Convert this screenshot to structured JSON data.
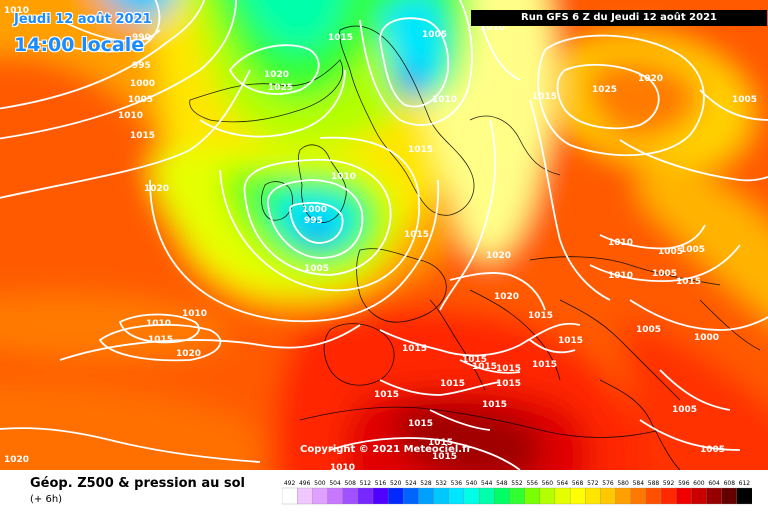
{
  "header": {
    "date_label": "Jeudi 12 août 2021",
    "time_label": "14:00 locale",
    "run_label": "Run GFS 6 Z du Jeudi 12 août 2021"
  },
  "copyright": "Copyright © 2021 Meteociel.fr",
  "legend": {
    "title": "Géop. Z500 & pression au sol",
    "subtitle": "(+ 6h)",
    "scale_values": [
      "492",
      "496",
      "500",
      "504",
      "508",
      "512",
      "516",
      "520",
      "524",
      "528",
      "532",
      "536",
      "540",
      "544",
      "548",
      "552",
      "556",
      "560",
      "564",
      "568",
      "572",
      "576",
      "580",
      "584",
      "588",
      "592",
      "596",
      "600",
      "604",
      "608",
      "612"
    ],
    "scale_colors": [
      "#ffffff",
      "#f0c8ff",
      "#e0a0ff",
      "#c878ff",
      "#a050ff",
      "#7828ff",
      "#5000ff",
      "#0028ff",
      "#0064ff",
      "#00a0ff",
      "#00c8ff",
      "#00e6ff",
      "#00ffe6",
      "#00ffaa",
      "#00ff64",
      "#32ff32",
      "#78ff00",
      "#b4ff00",
      "#e6ff00",
      "#ffff00",
      "#ffe600",
      "#ffc800",
      "#ffa000",
      "#ff7800",
      "#ff5000",
      "#ff2800",
      "#f00000",
      "#c80000",
      "#960000",
      "#640000",
      "#000000"
    ]
  },
  "isobars": [
    {
      "text": "1010",
      "pos": "nw-corner"
    },
    {
      "text": "990",
      "pos": "iceland-low"
    },
    {
      "text": "995",
      "pos": "iceland-low"
    },
    {
      "text": "1000",
      "pos": "iceland-low"
    },
    {
      "text": "1005",
      "pos": "iceland-low"
    },
    {
      "text": "1010",
      "pos": "iceland-low"
    },
    {
      "text": "1015",
      "pos": "iceland-low"
    },
    {
      "text": "1020",
      "pos": "atlantic"
    },
    {
      "text": "1020",
      "pos": "greenland-sea"
    },
    {
      "text": "1025",
      "pos": "greenland-sea"
    },
    {
      "text": "1015",
      "pos": "north-sea"
    },
    {
      "text": "1005",
      "pos": "norwegian-sea"
    },
    {
      "text": "1010",
      "pos": "norwegian-sea"
    },
    {
      "text": "1000",
      "pos": "uk-low"
    },
    {
      "text": "995",
      "pos": "uk-low"
    },
    {
      "text": "1005",
      "pos": "uk-low"
    },
    {
      "text": "1010",
      "pos": "uk-low"
    },
    {
      "text": "1015",
      "pos": "france"
    },
    {
      "text": "1015",
      "pos": "scandinavia"
    },
    {
      "text": "1010",
      "pos": "barents"
    },
    {
      "text": "1015",
      "pos": "russia"
    },
    {
      "text": "1025",
      "pos": "russia"
    },
    {
      "text": "1020",
      "pos": "russia"
    },
    {
      "text": "1005",
      "pos": "ne-corner"
    },
    {
      "text": "1020",
      "pos": "central-europe"
    },
    {
      "text": "1020",
      "pos": "alps"
    },
    {
      "text": "1010",
      "pos": "black-sea"
    },
    {
      "text": "1005",
      "pos": "black-sea"
    },
    {
      "text": "1005",
      "pos": "black-sea"
    },
    {
      "text": "1010",
      "pos": "black-sea"
    },
    {
      "text": "1005",
      "pos": "black-sea"
    },
    {
      "text": "1015",
      "pos": "caspian"
    },
    {
      "text": "1005",
      "pos": "turkey"
    },
    {
      "text": "1000",
      "pos": "middle-east"
    },
    {
      "text": "1005",
      "pos": "middle-east"
    },
    {
      "text": "1005",
      "pos": "middle-east"
    },
    {
      "text": "1010",
      "pos": "azores"
    },
    {
      "text": "1010",
      "pos": "azores"
    },
    {
      "text": "1015",
      "pos": "azores"
    },
    {
      "text": "1020",
      "pos": "azores"
    },
    {
      "text": "1015",
      "pos": "iberia"
    },
    {
      "text": "1015",
      "pos": "italy"
    },
    {
      "text": "1015",
      "pos": "balkans"
    },
    {
      "text": "1015",
      "pos": "mediterranean"
    },
    {
      "text": "1015",
      "pos": "mediterranean"
    },
    {
      "text": "1015",
      "pos": "mediterranean"
    },
    {
      "text": "1015",
      "pos": "greece"
    },
    {
      "text": "1015",
      "pos": "sicily"
    },
    {
      "text": "1015",
      "pos": "libya"
    },
    {
      "text": "1015",
      "pos": "algeria"
    },
    {
      "text": "1015",
      "pos": "sahara"
    },
    {
      "text": "1015",
      "pos": "sahara"
    },
    {
      "text": "1015",
      "pos": "sahara"
    },
    {
      "text": "1015",
      "pos": "sahara"
    },
    {
      "text": "1010",
      "pos": "sahara"
    },
    {
      "text": "1020",
      "pos": "sw-corner"
    }
  ]
}
